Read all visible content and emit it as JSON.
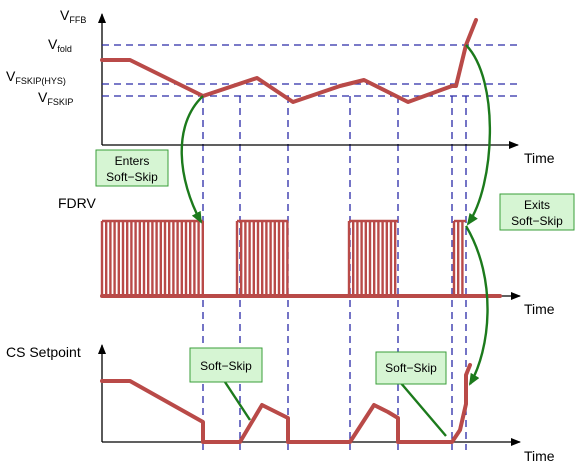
{
  "colors": {
    "trace": "#b94a48",
    "guide": "#2a2aa8",
    "arrow": "#1c7a1c",
    "callout_fill": "#d6f5d3",
    "callout_border": "#3a9e3a"
  },
  "vffb_axis": {
    "label_main": "V",
    "label_sub": "FFB",
    "time_label": "Time",
    "levels": [
      {
        "main": "V",
        "sub": "fold"
      },
      {
        "main": "V",
        "sub": "FSKIP(HYS)"
      },
      {
        "main": "V",
        "sub": "FSKIP"
      }
    ]
  },
  "fdrv_axis": {
    "label": "FDRV",
    "time_label": "Time"
  },
  "cs_axis": {
    "label": "CS Setpoint",
    "time_label": "Time"
  },
  "callouts": {
    "enters": [
      "Enters",
      "Soft−Skip"
    ],
    "exits": [
      "Exits",
      "Soft−Skip"
    ],
    "softskip_1": "Soft−Skip",
    "softskip_2": "Soft−Skip"
  }
}
